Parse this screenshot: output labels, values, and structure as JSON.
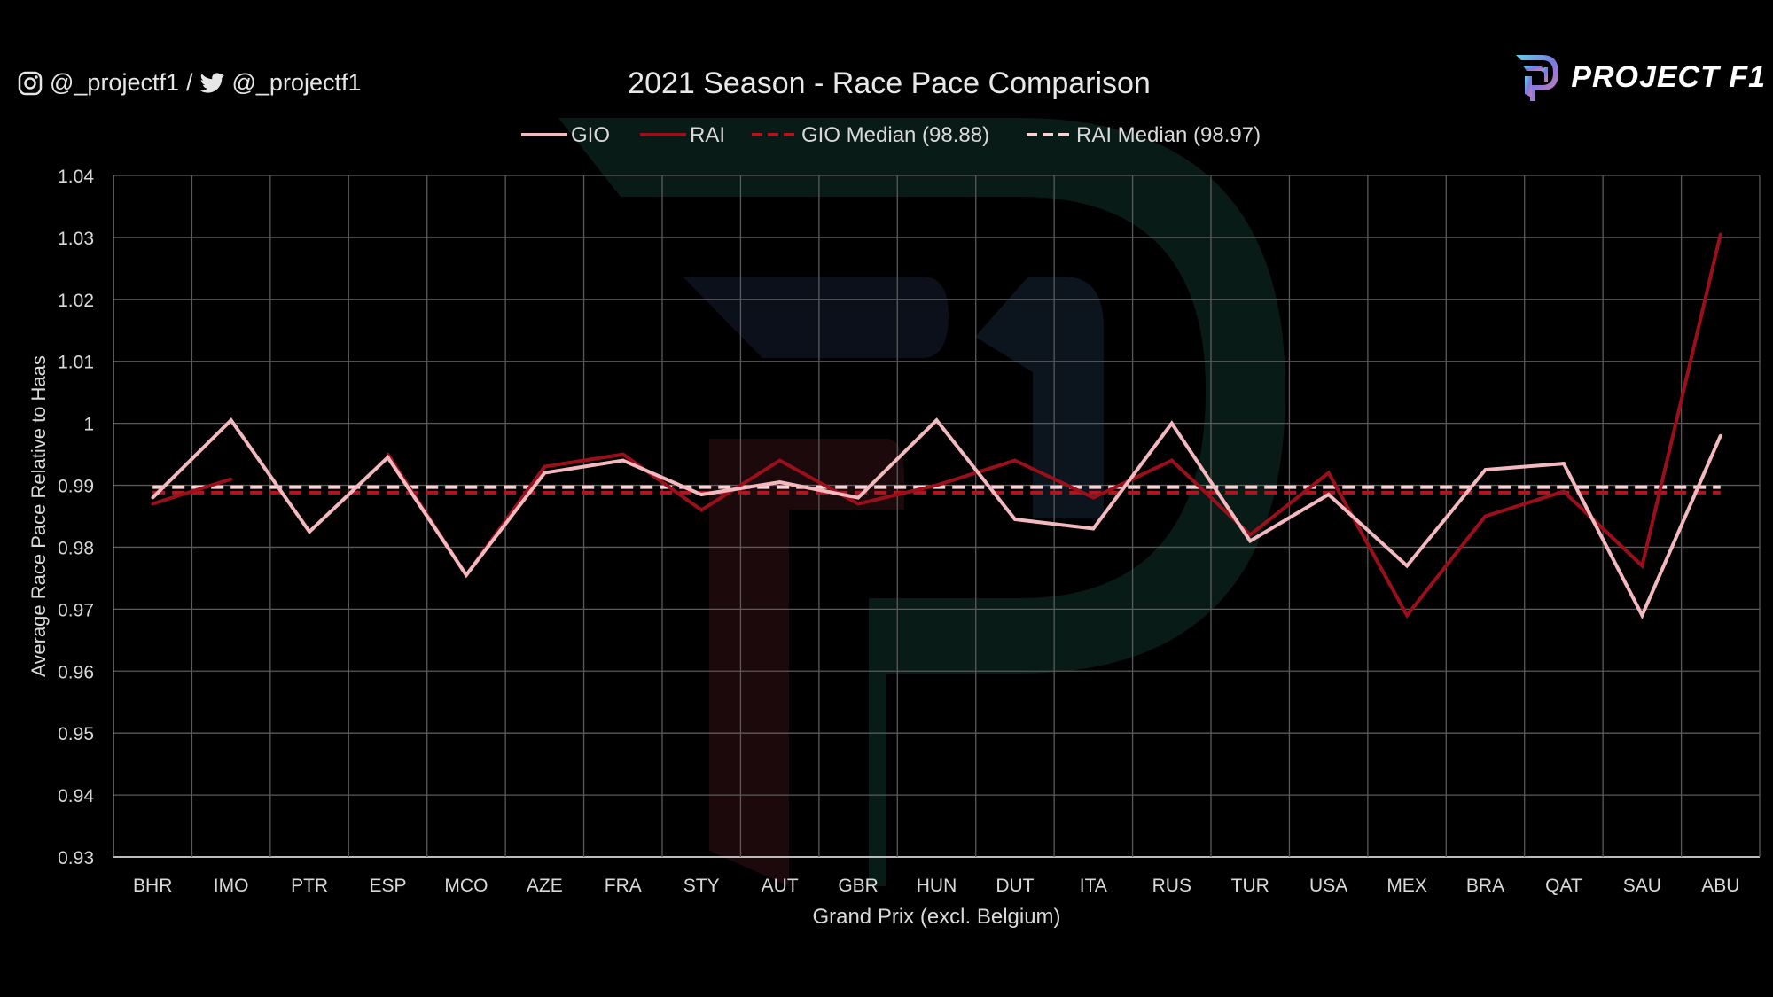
{
  "header": {
    "instagram_handle": "@_projectf1",
    "separator": "/",
    "twitter_handle": "@_projectf1",
    "brand": "PROJECT F1"
  },
  "colors": {
    "gio": "#f4b9bf",
    "rai": "#9b0f1a",
    "gio_median": "#b01520",
    "rai_median": "#f6d3d6",
    "grid": "#5a5a5a",
    "text": "#d9d9d9",
    "background": "#000000"
  },
  "chart_data": {
    "type": "line",
    "title": "2021 Season - Race Pace Comparison",
    "xlabel": "Grand Prix (excl. Belgium)",
    "ylabel": "Average Race Pace Relative to Haas",
    "ylim": [
      0.93,
      1.04
    ],
    "yticks": [
      0.93,
      0.94,
      0.95,
      0.96,
      0.97,
      0.98,
      0.99,
      1,
      1.01,
      1.02,
      1.03,
      1.04
    ],
    "ytick_labels": [
      "0.93",
      "0.94",
      "0.95",
      "0.96",
      "0.97",
      "0.98",
      "0.99",
      "1",
      "1.01",
      "1.02",
      "1.03",
      "1.04"
    ],
    "categories": [
      "BHR",
      "IMO",
      "PTR",
      "ESP",
      "MCO",
      "AZE",
      "FRA",
      "STY",
      "AUT",
      "GBR",
      "HUN",
      "DUT",
      "ITA",
      "RUS",
      "TUR",
      "USA",
      "MEX",
      "BRA",
      "QAT",
      "SAU",
      "ABU"
    ],
    "series": [
      {
        "name": "GIO",
        "style": "solid",
        "color": "#f4b9bf",
        "values": [
          0.988,
          1.0005,
          0.9825,
          0.9945,
          0.9755,
          0.992,
          0.994,
          0.9885,
          0.9905,
          0.988,
          1.0005,
          0.9845,
          0.983,
          1.0,
          0.981,
          0.9885,
          0.977,
          0.9925,
          0.9935,
          0.969,
          0.998
        ]
      },
      {
        "name": "RAI",
        "style": "solid",
        "color": "#9b0f1a",
        "values": [
          0.987,
          0.991,
          null,
          0.995,
          0.9755,
          0.993,
          0.995,
          0.986,
          0.994,
          0.987,
          0.99,
          0.994,
          0.988,
          0.994,
          0.982,
          0.992,
          0.969,
          0.985,
          0.989,
          0.977,
          1.0305
        ]
      },
      {
        "name": "GIO Median (98.88)",
        "style": "dashed",
        "color": "#b01520",
        "constant": 0.9888
      },
      {
        "name": "RAI Median (98.97)",
        "style": "dashed",
        "color": "#f6d3d6",
        "constant": 0.9897
      }
    ],
    "legend_position": "top-center",
    "grid": true
  }
}
